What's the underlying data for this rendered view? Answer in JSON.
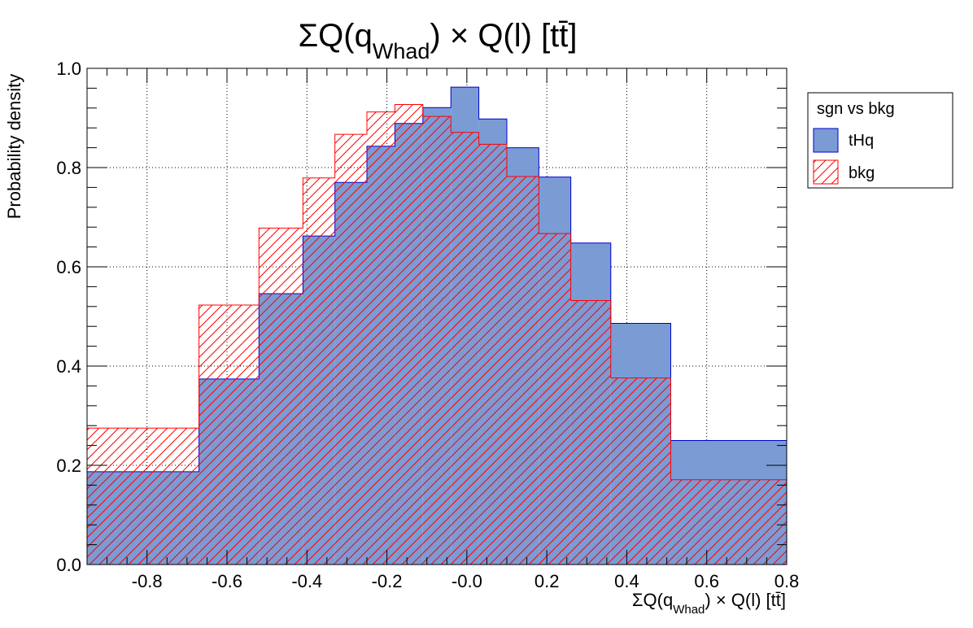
{
  "chart_data": {
    "type": "bar",
    "title": "ΣQ(q_Whad) × Q(l) [tt̄]",
    "xlabel": "ΣQ(q_Whad) × Q(l) [tt̄]",
    "ylabel": "Probability density",
    "xlim": [
      -0.95,
      0.8
    ],
    "ylim": [
      0.0,
      1.0
    ],
    "grid": true,
    "legend_position": "right",
    "xticks": [
      "-0.8",
      "-0.6",
      "-0.4",
      "-0.2",
      "-0.0",
      "0.2",
      "0.4",
      "0.6",
      "0.8"
    ],
    "yticks": [
      "0.0",
      "0.2",
      "0.4",
      "0.6",
      "0.8",
      "1.0"
    ],
    "bin_edges": [
      -0.95,
      -0.67,
      -0.52,
      -0.41,
      -0.33,
      -0.25,
      -0.18,
      -0.11,
      -0.04,
      0.03,
      0.1,
      0.18,
      0.26,
      0.36,
      0.51,
      0.8
    ],
    "series": [
      {
        "name": "tHq",
        "style": "filled",
        "fill_color": "#7b9bd5",
        "line_color": "#0000cc",
        "values": [
          0.187,
          0.374,
          0.546,
          0.662,
          0.77,
          0.843,
          0.889,
          0.921,
          0.962,
          0.898,
          0.84,
          0.781,
          0.648,
          0.486,
          0.25
        ]
      },
      {
        "name": "bkg",
        "style": "hatched",
        "line_color": "#ff0000",
        "values": [
          0.275,
          0.523,
          0.678,
          0.779,
          0.867,
          0.912,
          0.927,
          0.903,
          0.871,
          0.847,
          0.782,
          0.667,
          0.532,
          0.376,
          0.171
        ]
      }
    ]
  },
  "legend": {
    "header": "sgn vs bkg",
    "entries": [
      "tHq",
      "bkg"
    ]
  }
}
